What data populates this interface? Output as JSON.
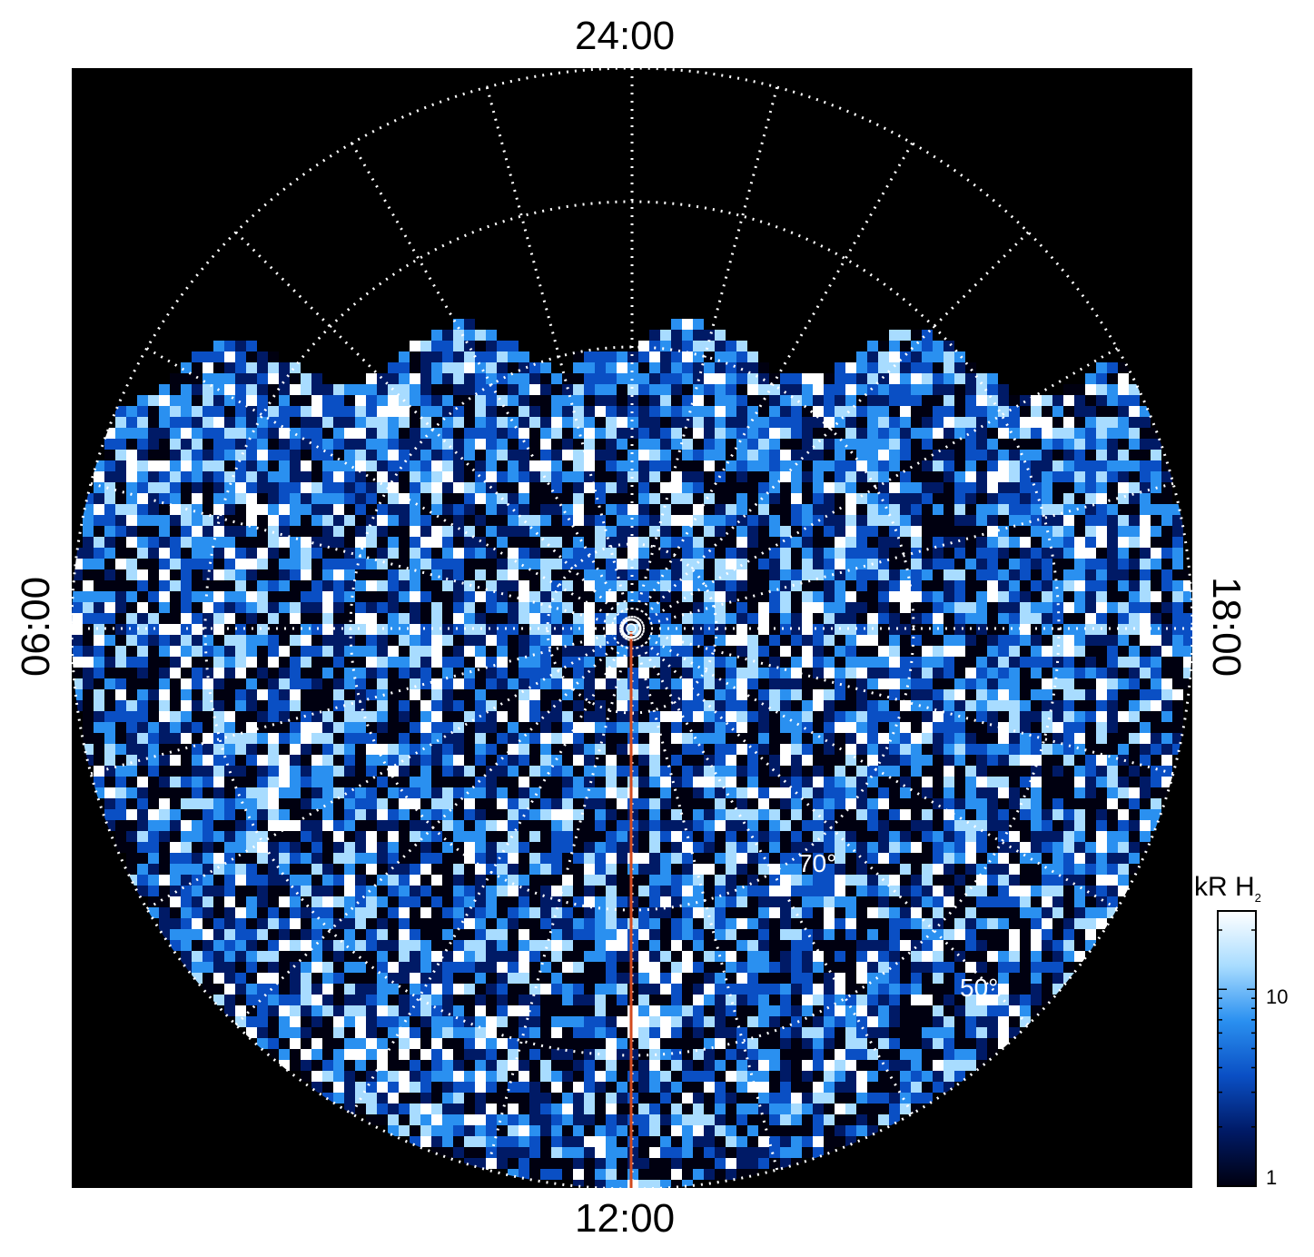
{
  "chart_data": {
    "type": "heatmap",
    "projection": "polar (north-up polar view of auroral emission)",
    "local_time_labels": {
      "top": "24:00",
      "bottom": "12:00",
      "left": "06:00",
      "right": "18:00"
    },
    "latitude_labels": [
      "70°",
      "50°"
    ],
    "colorbar": {
      "title": "kR H",
      "title_subscript": "2",
      "scale": "log",
      "range": [
        1,
        25
      ],
      "ticks": [
        {
          "value": 1,
          "label": "1"
        },
        {
          "value": 10,
          "label": "10"
        }
      ],
      "colors": [
        "#000010",
        "#001a66",
        "#0a4fc4",
        "#2a90f0",
        "#a8dcff",
        "#ffffff"
      ]
    },
    "grid": true,
    "meridian_line_color": "#d24a1e"
  }
}
